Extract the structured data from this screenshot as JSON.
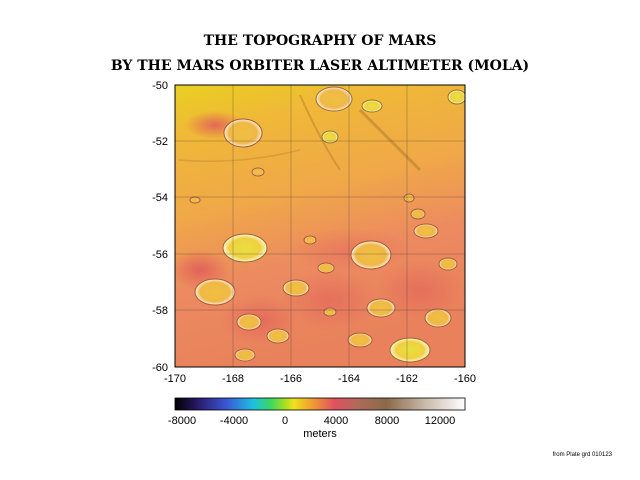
{
  "title_line1": "THE TOPOGRAPHY OF MARS",
  "title_line2": "BY THE MARS ORBITER LASER ALTIMETER (MOLA)",
  "map": {
    "lat_ticks": [
      "-50",
      "-52",
      "-54",
      "-56",
      "-58",
      "-60"
    ],
    "lon_ticks": [
      "-170",
      "-168",
      "-166",
      "-164",
      "-162",
      "-160"
    ],
    "lat_range": [
      -60,
      -50
    ],
    "lon_range": [
      -170,
      -160
    ]
  },
  "colorbar": {
    "ticks": [
      "-8000",
      "-4000",
      "0",
      "4000",
      "8000",
      "12000"
    ],
    "unit_label": "meters",
    "range": [
      -8000,
      14000
    ],
    "colors": [
      "#000000",
      "#2a1a6a",
      "#3a5ad8",
      "#1ec0e0",
      "#3ad860",
      "#a8e020",
      "#f0e020",
      "#f0a030",
      "#e05060",
      "#b06a5a",
      "#8a6a4a",
      "#c8b8a8",
      "#ffffff"
    ]
  },
  "credit": "from Plate grd 010123"
}
